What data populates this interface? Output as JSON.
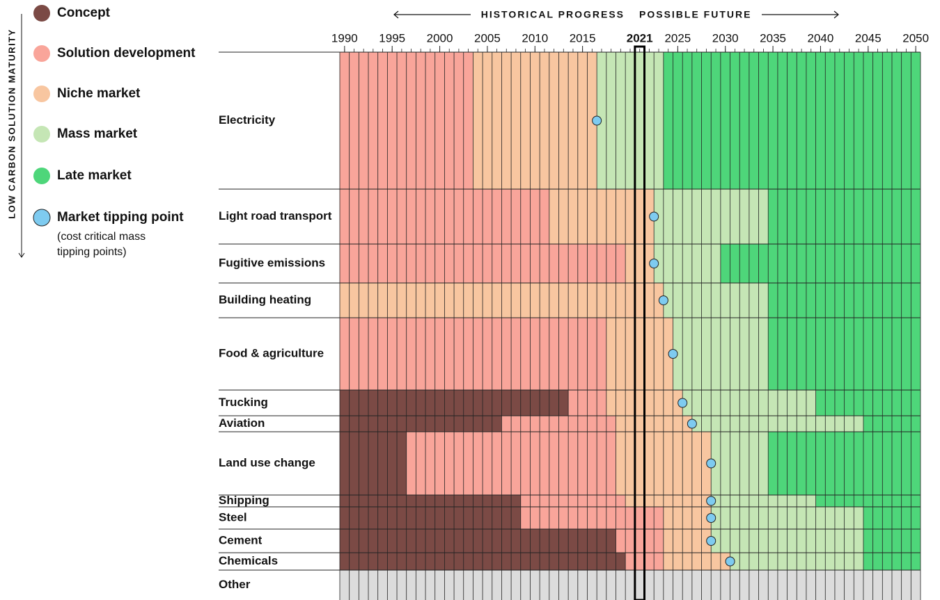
{
  "chart_data": {
    "type": "maturity-timeline",
    "axis_label": "LOW CARBON SOLUTION MATURITY",
    "left_header": "HISTORICAL PROGRESS",
    "right_header": "POSSIBLE FUTURE",
    "stages": [
      {
        "name": "Concept",
        "color": "#7b4a45"
      },
      {
        "name": "Solution development",
        "color": "#f9a59a"
      },
      {
        "name": "Niche market",
        "color": "#f8c6a0"
      },
      {
        "name": "Mass market",
        "color": "#c5e6b5"
      },
      {
        "name": "Late market",
        "color": "#4ed67a"
      }
    ],
    "tipping": {
      "name": "Market tipping point",
      "note": "(cost critical mass tipping points)",
      "color": "#7ecbf0"
    },
    "no_data_color": "#dcdcdc",
    "xlim": [
      1990,
      2050
    ],
    "xticks": [
      1990,
      1995,
      2000,
      2005,
      2010,
      2015,
      2025,
      2030,
      2035,
      2040,
      2045,
      2050
    ],
    "highlight_year": 2021,
    "sectors": [
      {
        "name": "Electricity",
        "starts": [
          null,
          1990,
          2004,
          2017,
          2024
        ],
        "tipping": 2017
      },
      {
        "name": "Light road transport",
        "starts": [
          null,
          1990,
          2012,
          2023,
          2035
        ],
        "tipping": 2023
      },
      {
        "name": "Fugitive emissions",
        "starts": [
          null,
          1990,
          2020,
          2023,
          2030
        ],
        "tipping": 2023
      },
      {
        "name": "Building heating",
        "starts": [
          null,
          null,
          1990,
          2024,
          2035
        ],
        "tipping": 2024
      },
      {
        "name": "Food & agriculture",
        "starts": [
          null,
          1990,
          2018,
          2025,
          2035
        ],
        "tipping": 2025
      },
      {
        "name": "Trucking",
        "starts": [
          1990,
          2014,
          2018,
          2026,
          2040
        ],
        "tipping": 2026
      },
      {
        "name": "Aviation",
        "starts": [
          1990,
          2007,
          2019,
          2027,
          2045
        ],
        "tipping": 2027
      },
      {
        "name": "Land use change",
        "starts": [
          1990,
          1997,
          2019,
          2029,
          2035
        ],
        "tipping": 2029
      },
      {
        "name": "Shipping",
        "starts": [
          1990,
          2009,
          2020,
          2029,
          2040
        ],
        "tipping": 2029
      },
      {
        "name": "Steel",
        "starts": [
          1990,
          2009,
          2024,
          2029,
          2045
        ],
        "tipping": 2029
      },
      {
        "name": "Cement",
        "starts": [
          1990,
          2019,
          2024,
          2029,
          2045
        ],
        "tipping": 2029
      },
      {
        "name": "Chemicals",
        "starts": [
          1990,
          2020,
          2024,
          2031,
          2045
        ],
        "tipping": 2031
      },
      {
        "name": "Other",
        "starts": [
          null,
          null,
          null,
          null,
          null
        ],
        "tipping": null
      }
    ]
  }
}
